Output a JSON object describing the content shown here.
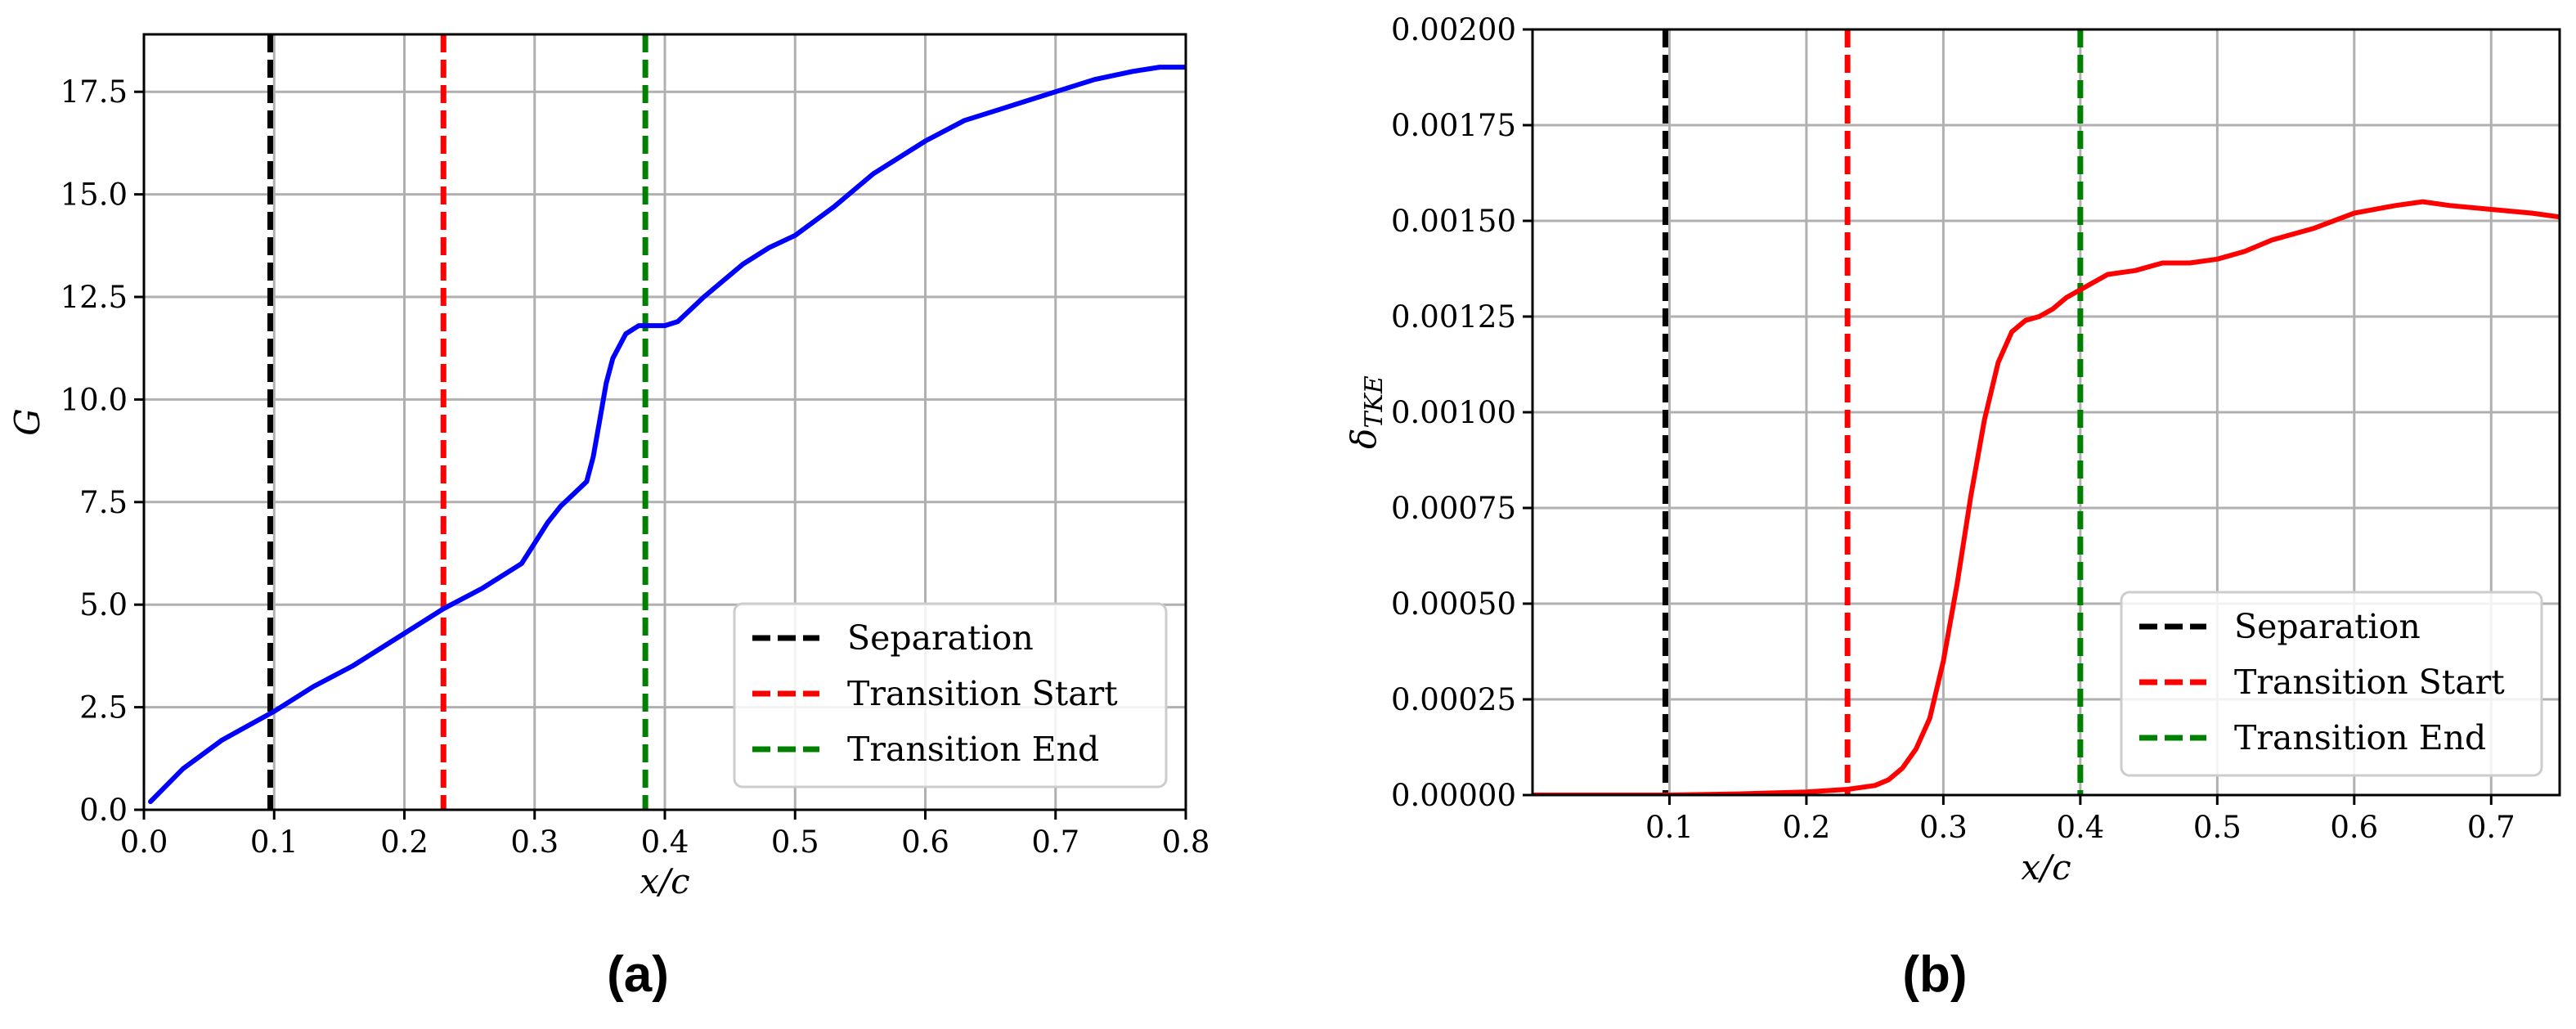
{
  "chart_data": [
    {
      "type": "line",
      "caption": "(a)",
      "xlabel": "x/c",
      "ylabel": "G",
      "xlim": [
        0.0,
        0.8
      ],
      "ylim": [
        0.0,
        18.9
      ],
      "xticks": [
        "0.0",
        "0.1",
        "0.2",
        "0.3",
        "0.4",
        "0.5",
        "0.6",
        "0.7",
        "0.8"
      ],
      "xtick_values": [
        0.0,
        0.1,
        0.2,
        0.3,
        0.4,
        0.5,
        0.6,
        0.7,
        0.8
      ],
      "yticks": [
        "0.0",
        "2.5",
        "5.0",
        "7.5",
        "10.0",
        "12.5",
        "15.0",
        "17.5"
      ],
      "ytick_values": [
        0.0,
        2.5,
        5.0,
        7.5,
        10.0,
        12.5,
        15.0,
        17.5
      ],
      "grid": true,
      "legend_position": "lower-right",
      "series": [
        {
          "color": "#0000ff",
          "x": [
            0.005,
            0.03,
            0.06,
            0.1,
            0.13,
            0.16,
            0.2,
            0.23,
            0.26,
            0.29,
            0.3,
            0.31,
            0.32,
            0.33,
            0.34,
            0.345,
            0.35,
            0.355,
            0.36,
            0.37,
            0.38,
            0.39,
            0.4,
            0.41,
            0.43,
            0.46,
            0.48,
            0.5,
            0.53,
            0.56,
            0.6,
            0.63,
            0.66,
            0.7,
            0.73,
            0.76,
            0.78,
            0.8
          ],
          "y": [
            0.2,
            1.0,
            1.7,
            2.4,
            3.0,
            3.5,
            4.3,
            4.9,
            5.4,
            6.0,
            6.5,
            7.0,
            7.4,
            7.7,
            8.0,
            8.6,
            9.5,
            10.4,
            11.0,
            11.6,
            11.8,
            11.8,
            11.8,
            11.9,
            12.5,
            13.3,
            13.7,
            14.0,
            14.7,
            15.5,
            16.3,
            16.8,
            17.1,
            17.5,
            17.8,
            18.0,
            18.1,
            18.1
          ]
        }
      ],
      "vlines": [
        {
          "name": "Separation",
          "x": 0.097,
          "color": "#000000"
        },
        {
          "name": "Transition Start",
          "x": 0.23,
          "color": "#ff0000"
        },
        {
          "name": "Transition End",
          "x": 0.385,
          "color": "#008000"
        }
      ]
    },
    {
      "type": "line",
      "caption": "(b)",
      "xlabel": "x/c",
      "ylabel": "δ",
      "ylabel_sub": "TKE",
      "xlim": [
        0.0,
        0.75
      ],
      "ylim": [
        0.0,
        0.002
      ],
      "xticks": [
        "0.1",
        "0.2",
        "0.3",
        "0.4",
        "0.5",
        "0.6",
        "0.7"
      ],
      "xtick_values": [
        0.1,
        0.2,
        0.3,
        0.4,
        0.5,
        0.6,
        0.7
      ],
      "yticks": [
        "0.00000",
        "0.00025",
        "0.00050",
        "0.00075",
        "0.00100",
        "0.00125",
        "0.00150",
        "0.00175",
        "0.00200"
      ],
      "ytick_values": [
        0.0,
        0.00025,
        0.0005,
        0.00075,
        0.001,
        0.00125,
        0.0015,
        0.00175,
        0.002
      ],
      "grid": true,
      "legend_position": "center-right",
      "series": [
        {
          "color": "#ff0000",
          "x": [
            0.0,
            0.1,
            0.15,
            0.2,
            0.23,
            0.25,
            0.26,
            0.27,
            0.28,
            0.29,
            0.3,
            0.31,
            0.32,
            0.33,
            0.34,
            0.35,
            0.36,
            0.37,
            0.38,
            0.39,
            0.4,
            0.41,
            0.42,
            0.44,
            0.46,
            0.48,
            0.5,
            0.52,
            0.54,
            0.57,
            0.6,
            0.63,
            0.65,
            0.67,
            0.7,
            0.73,
            0.75
          ],
          "y": [
            0.0,
            0.0,
            3e-06,
            8e-06,
            1.5e-05,
            2.5e-05,
            4e-05,
            7e-05,
            0.00012,
            0.0002,
            0.00035,
            0.00055,
            0.00078,
            0.00098,
            0.00113,
            0.00121,
            0.00124,
            0.00125,
            0.00127,
            0.0013,
            0.00132,
            0.00134,
            0.00136,
            0.00137,
            0.00139,
            0.00139,
            0.0014,
            0.00142,
            0.00145,
            0.00148,
            0.00152,
            0.00154,
            0.00155,
            0.00154,
            0.00153,
            0.00152,
            0.00151
          ]
        }
      ],
      "vlines": [
        {
          "name": "Separation",
          "x": 0.097,
          "color": "#000000"
        },
        {
          "name": "Transition Start",
          "x": 0.23,
          "color": "#ff0000"
        },
        {
          "name": "Transition End",
          "x": 0.4,
          "color": "#008000"
        }
      ]
    }
  ]
}
